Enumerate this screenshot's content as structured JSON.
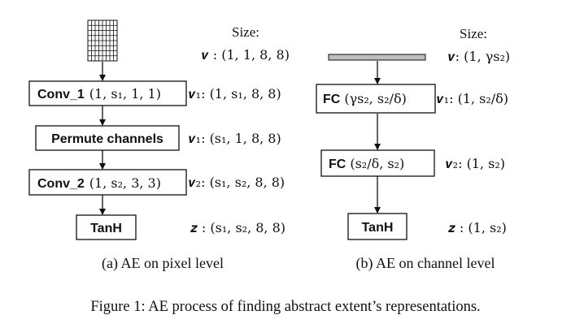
{
  "panel_a": {
    "size_header": "Size:",
    "nodes": [
      {
        "label": "Conv_1",
        "param": "(1, s₁, 1, 1)"
      },
      {
        "label": "Permute channels",
        "param": ""
      },
      {
        "label": "Conv_2",
        "param": "(1, s₂, 3, 3)"
      },
      {
        "label": "TanH",
        "param": ""
      }
    ],
    "sizes": [
      "𝒗 :  (1, 1, 8, 8)",
      "𝒗₁:  (1, s₁, 8, 8)",
      "𝒗₁:  (s₁, 1, 8, 8)",
      "𝒗₂:  (s₁, s₂, 8, 8)",
      "𝒛 :  (s₁, s₂, 8, 8)"
    ],
    "caption": "(a) AE on pixel level"
  },
  "panel_b": {
    "size_header": "Size:",
    "nodes": [
      {
        "label": "FC",
        "param": "(γs₂, s₂/δ)"
      },
      {
        "label": "FC",
        "param": "(s₂/δ, s₂)"
      },
      {
        "label": "TanH",
        "param": ""
      }
    ],
    "sizes": [
      "𝒗: (1, γs₂)",
      "𝒗₁: (1, s₂/δ)",
      "𝒗₂: (1, s₂)",
      "𝒛 :  (1, s₂)"
    ],
    "caption": "(b) AE on channel level"
  },
  "figure_caption": "Figure 1: AE process of finding abstract extent’s representations.",
  "colors": {
    "line": "#111111",
    "bar_fill": "#bdbdbd",
    "background": "#ffffff"
  }
}
